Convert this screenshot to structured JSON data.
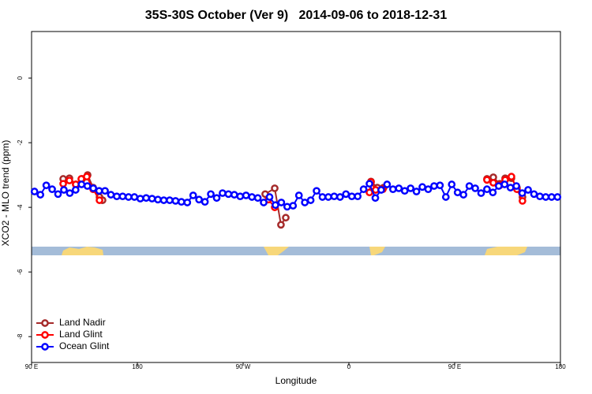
{
  "chart_data": {
    "type": "line",
    "title": "35S-30S October (Ver 9)   2014-09-06 to 2018-12-31",
    "xlabel": "Longitude",
    "ylabel": "XCO2 - MLO trend (ppm)",
    "xlim": [
      90,
      540
    ],
    "ylim": [
      -8.8,
      1.44
    ],
    "xticks": [
      {
        "value": 90,
        "label": "90 E"
      },
      {
        "value": 180,
        "label": "180"
      },
      {
        "value": 270,
        "label": "90 W"
      },
      {
        "value": 360,
        "label": "0"
      },
      {
        "value": 450,
        "label": "90 E"
      },
      {
        "value": 540,
        "label": "180"
      }
    ],
    "yticks": [
      0,
      -2,
      -4,
      -6,
      -8
    ],
    "legend": "bottom-left",
    "series": [
      {
        "name": "Land Nadir",
        "color": "#a52a2a",
        "x": [
          116.9,
          122.2,
          127.6,
          133.0,
          137.7,
          142.4,
          147.8,
          150.4,
          220,
          288.8,
          296.9,
          302.2,
          306.3,
          340,
          378.8,
          384.2,
          389.5,
          430,
          477.5,
          482.9,
          488.3,
          493.0,
          498.3,
          503.0,
          507.7
        ],
        "values": [
          -3.12,
          -3.1,
          -3.29,
          -3.12,
          -3.0,
          -3.39,
          -3.68,
          -3.78,
          null,
          -3.59,
          -3.41,
          -4.54,
          -4.32,
          null,
          -3.2,
          -3.39,
          -3.39,
          null,
          -3.12,
          -3.07,
          -3.27,
          -3.1,
          -3.1,
          -3.39,
          -3.68
        ]
      },
      {
        "name": "Land Glint",
        "color": "#ff0000",
        "x": [
          116.9,
          122.2,
          127.6,
          132.3,
          137.0,
          142.4,
          147.8,
          220,
          291.5,
          296.9,
          340,
          377.5,
          378.8,
          382.8,
          388.9,
          430,
          477.5,
          482.9,
          488.3,
          493.0,
          498.3,
          503.0,
          507.7
        ],
        "values": [
          -3.27,
          -3.17,
          -3.29,
          -3.12,
          -3.05,
          -3.44,
          -3.78,
          null,
          -3.76,
          -4.0,
          null,
          -3.54,
          -3.22,
          -3.46,
          -3.44,
          null,
          -3.15,
          -3.24,
          -3.32,
          -3.15,
          -3.05,
          -3.44,
          -3.8
        ]
      },
      {
        "name": "Ocean Glint",
        "color": "#0000ff",
        "x": [
          92.5,
          97.5,
          102.5,
          107.5,
          112.5,
          117.5,
          122.5,
          127.5,
          132.5,
          137.5,
          142.5,
          147.5,
          152.5,
          157.5,
          162.5,
          167.5,
          172.5,
          177.5,
          182.5,
          187.5,
          192.5,
          197.5,
          202.5,
          207.5,
          212.5,
          217.5,
          222.5,
          227.5,
          232.5,
          237.5,
          242.5,
          247.5,
          252.5,
          257.5,
          262.5,
          267.5,
          272.5,
          277.5,
          282.5,
          287.5,
          292.5,
          297.5,
          302.5,
          307.5,
          312.5,
          317.5,
          322.5,
          327.5,
          332.5,
          337.5,
          342.5,
          347.5,
          352.5,
          357.5,
          362.5,
          367.5,
          372.5,
          377.5,
          382.5,
          387.5,
          392.5,
          397.5,
          402.5,
          407.5,
          412.5,
          417.5,
          422.5,
          427.5,
          432.5,
          437.5,
          442.5,
          447.5,
          452.5,
          457.5,
          462.5,
          467.5,
          472.5,
          477.5,
          482.5,
          487.5,
          492.5,
          497.5,
          502.5,
          507.5,
          512.5,
          517.5,
          522.5,
          527.5,
          532.5,
          537.5
        ],
        "values": [
          -3.51,
          -3.61,
          -3.32,
          -3.44,
          -3.59,
          -3.46,
          -3.56,
          -3.46,
          -3.29,
          -3.34,
          -3.41,
          -3.49,
          -3.49,
          -3.61,
          -3.66,
          -3.66,
          -3.68,
          -3.68,
          -3.73,
          -3.71,
          -3.73,
          -3.76,
          -3.78,
          -3.78,
          -3.8,
          -3.83,
          -3.85,
          -3.63,
          -3.76,
          -3.83,
          -3.59,
          -3.71,
          -3.56,
          -3.59,
          -3.61,
          -3.66,
          -3.63,
          -3.68,
          -3.71,
          -3.85,
          -3.68,
          -3.93,
          -3.85,
          -3.98,
          -3.95,
          -3.63,
          -3.85,
          -3.78,
          -3.49,
          -3.68,
          -3.68,
          -3.66,
          -3.68,
          -3.59,
          -3.66,
          -3.66,
          -3.44,
          -3.27,
          -3.71,
          -3.46,
          -3.29,
          -3.44,
          -3.41,
          -3.49,
          -3.41,
          -3.51,
          -3.37,
          -3.44,
          -3.34,
          -3.32,
          -3.68,
          -3.29,
          -3.54,
          -3.61,
          -3.34,
          -3.41,
          -3.56,
          -3.44,
          -3.54,
          -3.34,
          -3.29,
          -3.39,
          -3.34,
          -3.56,
          -3.46,
          -3.59,
          -3.66,
          -3.68,
          -3.68,
          -3.68
        ]
      }
    ]
  }
}
